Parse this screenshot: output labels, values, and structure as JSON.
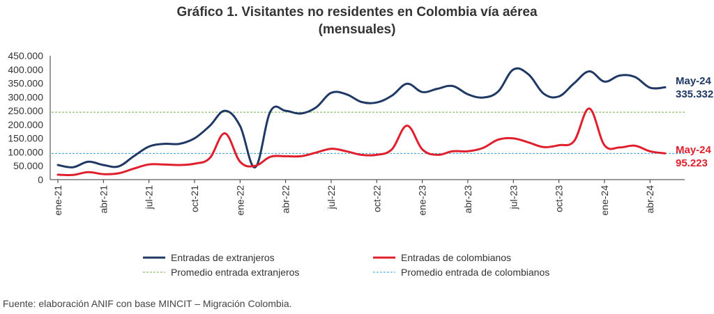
{
  "title_line1": "Gráfico 1. Visitantes no residentes en Colombia vía aérea",
  "title_line2": "(mensuales)",
  "source": "Fuente: elaboración ANIF con base MINCIT – Migración Colombia.",
  "colors": {
    "extranjeros": "#1f3864",
    "colombianos": "#e01f2d",
    "avg_extranjeros": "#70ad47",
    "avg_colombianos": "#2e9fd3",
    "axis": "#333333"
  },
  "chart_data": {
    "type": "line",
    "ylim": [
      0,
      450000
    ],
    "yticks": [
      0,
      50000,
      100000,
      150000,
      200000,
      250000,
      300000,
      350000,
      400000,
      450000
    ],
    "ytick_labels": [
      "0",
      "50.000",
      "100.000",
      "150.000",
      "200.000",
      "250.000",
      "300.000",
      "350.000",
      "400.000",
      "450.000"
    ],
    "x": [
      "ene-21",
      "feb-21",
      "mar-21",
      "abr-21",
      "may-21",
      "jun-21",
      "jul-21",
      "ago-21",
      "sep-21",
      "oct-21",
      "nov-21",
      "dic-21",
      "ene-22",
      "feb-22",
      "mar-22",
      "abr-22",
      "may-22",
      "jun-22",
      "jul-22",
      "ago-22",
      "sep-22",
      "oct-22",
      "nov-22",
      "dic-22",
      "ene-23",
      "feb-23",
      "mar-23",
      "abr-23",
      "may-23",
      "jun-23",
      "jul-23",
      "ago-23",
      "sep-23",
      "oct-23",
      "nov-23",
      "dic-23",
      "ene-24",
      "feb-24",
      "mar-24",
      "abr-24",
      "may-24"
    ],
    "xtick_labels": [
      "ene-21",
      "abr-21",
      "jul-21",
      "oct-21",
      "ene-22",
      "abr-22",
      "jul-22",
      "oct-22",
      "ene-23",
      "abr-23",
      "jul-23",
      "oct-23",
      "ene-24",
      "abr-24"
    ],
    "xtick_index": [
      0,
      3,
      6,
      9,
      12,
      15,
      18,
      21,
      24,
      27,
      30,
      33,
      36,
      39
    ],
    "series": [
      {
        "name": "Entradas de extranjeros",
        "key": "extranjeros",
        "values": [
          53000,
          45000,
          65000,
          53000,
          48000,
          85000,
          120000,
          130000,
          130000,
          150000,
          195000,
          250000,
          195000,
          45000,
          248000,
          250000,
          240000,
          262000,
          315000,
          310000,
          282000,
          280000,
          305000,
          348000,
          318000,
          330000,
          340000,
          310000,
          298000,
          320000,
          400000,
          382000,
          312000,
          302000,
          350000,
          393000,
          356000,
          378000,
          373000,
          334000,
          335332
        ]
      },
      {
        "name": "Entradas de colombianos",
        "key": "colombianos",
        "values": [
          18000,
          17000,
          27000,
          20000,
          23000,
          40000,
          55000,
          55000,
          53000,
          58000,
          78000,
          168000,
          65000,
          50000,
          83000,
          85000,
          85000,
          98000,
          112000,
          103000,
          90000,
          90000,
          110000,
          196000,
          110000,
          90000,
          103000,
          103000,
          115000,
          145000,
          150000,
          135000,
          118000,
          125000,
          140000,
          258000,
          125000,
          117000,
          123000,
          103000,
          95223
        ]
      }
    ],
    "reference_lines": [
      {
        "name": "Promedio entrada extranjeros",
        "key": "avg_extranjeros",
        "value": 245000
      },
      {
        "name": "Promedio entrada de colombianos",
        "key": "avg_colombianos",
        "value": 95000
      }
    ],
    "annotations": [
      {
        "series": "extranjeros",
        "label": "May-24",
        "value_label": "335.332"
      },
      {
        "series": "colombianos",
        "label": "May-24",
        "value_label": "95.223"
      }
    ]
  }
}
